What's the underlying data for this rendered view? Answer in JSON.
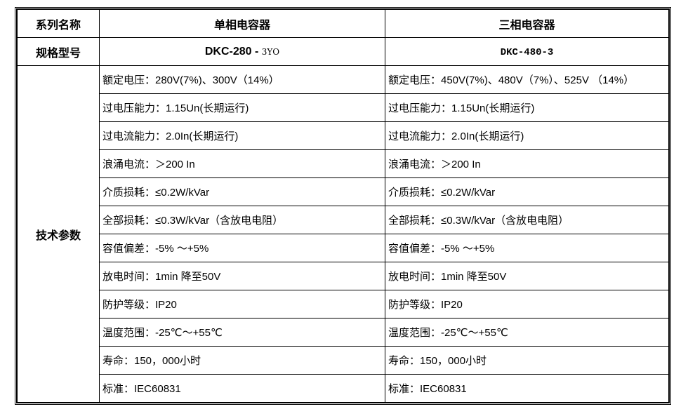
{
  "header": {
    "series_label": "系列名称",
    "single_phase": "单相电容器",
    "three_phase": "三相电容器"
  },
  "model": {
    "label": "规格型号",
    "single_prefix": "DKC-280 - ",
    "single_suffix": "3YO",
    "three": "DKC-480-3"
  },
  "tech": {
    "label": "技术参数",
    "rows": [
      {
        "single": "额定电压：280V(7%)、300V（14%）",
        "three": "额定电压：450V(7%)、480V（7%）、525V （14%）"
      },
      {
        "single": "过电压能力：1.15Un(长期运行)",
        "three": "过电压能力：1.15Un(长期运行)"
      },
      {
        "single": "过电流能力：2.0In(长期运行)",
        "three": "过电流能力：2.0In(长期运行)"
      },
      {
        "single": "浪涌电流：＞200 In",
        "three": "浪涌电流：＞200 In"
      },
      {
        "single": "介质损耗：≤0.2W/kVar",
        "three": "介质损耗：≤0.2W/kVar"
      },
      {
        "single": "全部损耗：≤0.3W/kVar（含放电电阻）",
        "three": "全部损耗：≤0.3W/kVar（含放电电阻）"
      },
      {
        "single": "容值偏差：-5% ～+5%",
        "three": "容值偏差：-5% ～+5%"
      },
      {
        "single": "放电时间：1min 降至50V",
        "three": "放电时间：1min 降至50V"
      },
      {
        "single": "防护等级：IP20",
        "three": "防护等级：IP20"
      },
      {
        "single": "温度范围：-25℃～+55℃",
        "three": "温度范围：-25℃～+55℃"
      },
      {
        "single": "寿命：150，000小时",
        "three": "寿命：150，000小时"
      },
      {
        "single": "标准：IEC60831",
        "three": "标准：IEC60831"
      }
    ]
  }
}
